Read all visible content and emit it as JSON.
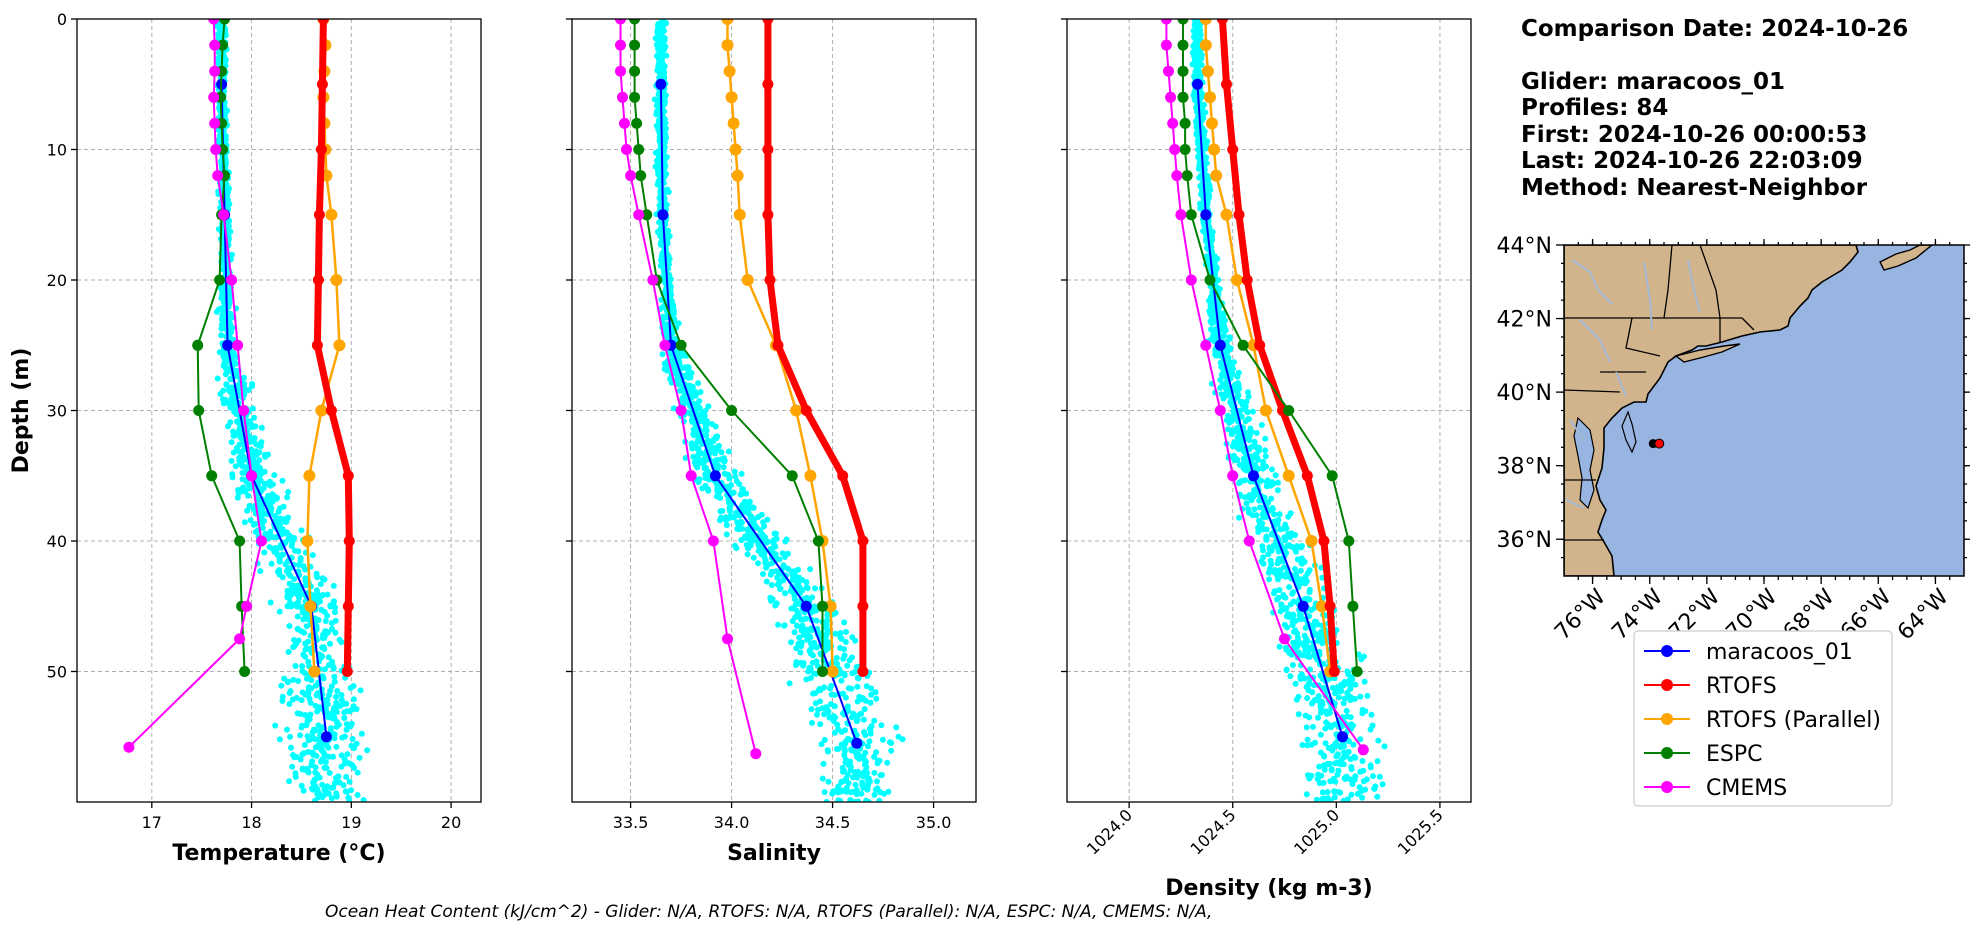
{
  "info": {
    "comparison_date": "Comparison Date: 2024-10-26",
    "glider": "Glider: maracoos_01",
    "profiles": "Profiles: 84",
    "first": "First: 2024-10-26 00:00:53",
    "last": "Last: 2024-10-26 22:03:09",
    "method": "Method: Nearest-Neighbor"
  },
  "footer": "Ocean Heat Content (kJ/cm^2) - Glider: N/A,  RTOFS: N/A,  RTOFS (Parallel): N/A,  ESPC: N/A,  CMEMS: N/A,",
  "colors": {
    "maracoos_01": "#0000ff",
    "RTOFS": "#ff0000",
    "RTOFS (Parallel)": "#ffa500",
    "ESPC": "#008000",
    "CMEMS": "#ff00ff",
    "scatter": "#00ffff",
    "land": "#d2b48c",
    "ocean": "#98b4e1",
    "rivers": "#a4b8d2"
  },
  "legend": {
    "placement": "below-map",
    "entries": [
      "maracoos_01",
      "RTOFS",
      "RTOFS (Parallel)",
      "ESPC",
      "CMEMS"
    ]
  },
  "map": {
    "lat_range": [
      35,
      44
    ],
    "lon_range": [
      -77,
      -63
    ],
    "lat_ticks": [
      "36°N",
      "38°N",
      "40°N",
      "42°N",
      "44°N"
    ],
    "lon_ticks": [
      "76°W",
      "74°W",
      "72°W",
      "70°W",
      "68°W",
      "66°W",
      "64°W"
    ],
    "glider_position": {
      "lat": 38.6,
      "lon": -73.7
    }
  },
  "chart_data": [
    {
      "type": "line",
      "xlabel": "Temperature (°C)",
      "ylabel": "Depth (m)",
      "xlim": [
        16.25,
        20.3
      ],
      "ylim": [
        60,
        0
      ],
      "xticks": [
        17,
        18,
        19,
        20
      ],
      "yticks": [
        0,
        10,
        20,
        30,
        40,
        50
      ],
      "grid": true,
      "scatter_cloud": {
        "name": "",
        "color": "cyan",
        "depth_range": [
          0,
          60
        ],
        "x_range": [
          17.0,
          19.6
        ]
      },
      "series": [
        {
          "name": "maracoos_01",
          "depth": [
            5,
            15,
            25,
            35,
            45,
            55
          ],
          "values": [
            17.7,
            17.73,
            17.76,
            18.0,
            18.6,
            18.75
          ]
        },
        {
          "name": "RTOFS",
          "depth": [
            0,
            5,
            10,
            15,
            20,
            25,
            30,
            35,
            40,
            45,
            50
          ],
          "values": [
            18.72,
            18.71,
            18.7,
            18.68,
            18.67,
            18.66,
            18.8,
            18.97,
            18.98,
            18.97,
            18.96
          ]
        },
        {
          "name": "RTOFS (Parallel)",
          "depth": [
            0,
            2,
            4,
            6,
            8,
            10,
            12,
            15,
            20,
            25,
            30,
            35,
            40,
            45,
            50
          ],
          "values": [
            18.72,
            18.74,
            18.73,
            18.72,
            18.73,
            18.74,
            18.75,
            18.8,
            18.85,
            18.88,
            18.7,
            18.58,
            18.56,
            18.59,
            18.63
          ]
        },
        {
          "name": "ESPC",
          "depth": [
            0,
            2,
            4,
            6,
            8,
            10,
            12,
            15,
            20,
            25,
            30,
            35,
            40,
            45,
            50
          ],
          "values": [
            17.73,
            17.71,
            17.7,
            17.69,
            17.7,
            17.71,
            17.73,
            17.7,
            17.68,
            17.46,
            17.47,
            17.6,
            17.88,
            17.9,
            17.93
          ]
        },
        {
          "name": "CMEMS",
          "depth": [
            0,
            2,
            4,
            6,
            8,
            10,
            12,
            15,
            20,
            25,
            30,
            35,
            40,
            45,
            47.5,
            55.8
          ],
          "values": [
            17.62,
            17.63,
            17.63,
            17.62,
            17.63,
            17.64,
            17.66,
            17.72,
            17.8,
            17.86,
            17.92,
            18.0,
            18.1,
            17.95,
            17.88,
            16.77
          ]
        }
      ]
    },
    {
      "type": "line",
      "xlabel": "Salinity",
      "ylabel": "",
      "xlim": [
        33.21,
        35.21
      ],
      "ylim": [
        60,
        0
      ],
      "xticks": [
        33.5,
        34.0,
        34.5,
        35.0
      ],
      "yticks": [
        0,
        10,
        20,
        30,
        40,
        50
      ],
      "grid": true,
      "scatter_cloud": {
        "name": "",
        "color": "cyan",
        "depth_range": [
          0,
          60
        ],
        "x_range": [
          33.5,
          34.9
        ]
      },
      "series": [
        {
          "name": "maracoos_01",
          "depth": [
            5,
            15,
            25,
            35,
            45,
            55.5
          ],
          "values": [
            33.65,
            33.66,
            33.7,
            33.92,
            34.37,
            34.62
          ]
        },
        {
          "name": "RTOFS",
          "depth": [
            0,
            5,
            10,
            15,
            20,
            25,
            30,
            35,
            40,
            45,
            50
          ],
          "values": [
            34.18,
            34.18,
            34.18,
            34.18,
            34.19,
            34.23,
            34.37,
            34.55,
            34.65,
            34.65,
            34.65
          ]
        },
        {
          "name": "RTOFS (Parallel)",
          "depth": [
            0,
            2,
            4,
            6,
            8,
            10,
            12,
            15,
            20,
            25,
            30,
            35,
            40,
            45,
            50
          ],
          "values": [
            33.98,
            33.98,
            33.99,
            34.0,
            34.01,
            34.02,
            34.03,
            34.04,
            34.08,
            34.22,
            34.32,
            34.39,
            34.45,
            34.49,
            34.5
          ]
        },
        {
          "name": "ESPC",
          "depth": [
            0,
            2,
            4,
            6,
            8,
            10,
            12,
            15,
            20,
            25,
            30,
            35,
            40,
            45,
            50
          ],
          "values": [
            33.52,
            33.52,
            33.52,
            33.52,
            33.53,
            33.54,
            33.55,
            33.58,
            33.63,
            33.75,
            34.0,
            34.3,
            34.43,
            34.45,
            34.45
          ]
        },
        {
          "name": "CMEMS",
          "depth": [
            0,
            2,
            4,
            6,
            8,
            10,
            12,
            15,
            20,
            25,
            30,
            35,
            40,
            47.5,
            56.3
          ],
          "values": [
            33.45,
            33.45,
            33.45,
            33.46,
            33.47,
            33.48,
            33.5,
            33.54,
            33.61,
            33.67,
            33.75,
            33.8,
            33.91,
            33.98,
            34.12
          ]
        }
      ]
    },
    {
      "type": "line",
      "xlabel": "Density (kg m-3)",
      "ylabel": "",
      "xlim": [
        1023.7,
        1025.65
      ],
      "ylim": [
        60,
        0
      ],
      "xticks": [
        1024.0,
        1024.5,
        1025.0,
        1025.5
      ],
      "yticks": [
        0,
        10,
        20,
        30,
        40,
        50
      ],
      "grid": true,
      "scatter_cloud": {
        "name": "",
        "color": "cyan",
        "depth_range": [
          0,
          60
        ],
        "x_range": [
          1024.2,
          1025.1
        ]
      },
      "series": [
        {
          "name": "maracoos_01",
          "depth": [
            5,
            15,
            25,
            35,
            45,
            55
          ],
          "values": [
            1024.33,
            1024.37,
            1024.44,
            1024.6,
            1024.84,
            1025.03
          ]
        },
        {
          "name": "RTOFS",
          "depth": [
            0,
            5,
            10,
            15,
            20,
            25,
            30,
            35,
            40,
            45,
            50
          ],
          "values": [
            1024.45,
            1024.47,
            1024.5,
            1024.53,
            1024.57,
            1024.63,
            1024.74,
            1024.86,
            1024.94,
            1024.97,
            1024.99
          ]
        },
        {
          "name": "RTOFS (Parallel)",
          "depth": [
            0,
            2,
            4,
            6,
            8,
            10,
            12,
            15,
            20,
            25,
            30,
            35,
            40,
            45,
            50
          ],
          "values": [
            1024.37,
            1024.37,
            1024.38,
            1024.39,
            1024.4,
            1024.41,
            1024.42,
            1024.47,
            1024.52,
            1024.6,
            1024.66,
            1024.77,
            1024.88,
            1024.93,
            1024.97
          ]
        },
        {
          "name": "ESPC",
          "depth": [
            0,
            2,
            4,
            6,
            8,
            10,
            12,
            15,
            20,
            25,
            30,
            35,
            40,
            45,
            50
          ],
          "values": [
            1024.26,
            1024.26,
            1024.26,
            1024.26,
            1024.27,
            1024.27,
            1024.28,
            1024.3,
            1024.39,
            1024.55,
            1024.77,
            1024.98,
            1025.06,
            1025.08,
            1025.1
          ]
        },
        {
          "name": "CMEMS",
          "depth": [
            0,
            2,
            4,
            6,
            8,
            10,
            12,
            15,
            20,
            25,
            30,
            35,
            40,
            47.5,
            56
          ],
          "values": [
            1024.18,
            1024.18,
            1024.19,
            1024.2,
            1024.21,
            1024.22,
            1024.23,
            1024.25,
            1024.3,
            1024.37,
            1024.44,
            1024.5,
            1024.58,
            1024.75,
            1025.13
          ]
        }
      ]
    }
  ]
}
